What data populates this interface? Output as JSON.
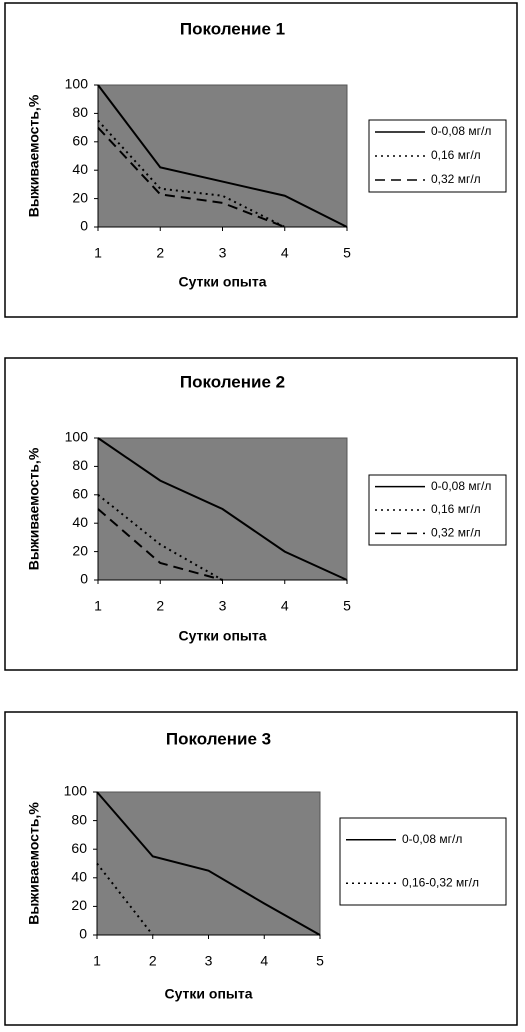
{
  "chart_data": [
    {
      "type": "line",
      "title": "Поколение 1",
      "x_label": "Сутки опыта",
      "y_label": "Выживаемость,%",
      "x": [
        1,
        2,
        3,
        4,
        5
      ],
      "xlim": [
        1,
        5
      ],
      "xticks": [
        1,
        2,
        3,
        4,
        5
      ],
      "ylim": [
        0,
        100
      ],
      "yticks": [
        0,
        20,
        40,
        60,
        80,
        100
      ],
      "legend": "right",
      "background": "#808080",
      "series": [
        {
          "name": "0-0,08 мг/л",
          "color": "#000000",
          "dash": "solid",
          "values": [
            100,
            42,
            32,
            22,
            0
          ]
        },
        {
          "name": "0,16 мг/л",
          "color": "#000000",
          "dash": "dotted",
          "values": [
            75,
            27,
            22,
            0,
            null
          ]
        },
        {
          "name": "0,32 мг/л",
          "color": "#000000",
          "dash": "dashed",
          "values": [
            70,
            23,
            17,
            0,
            null
          ]
        }
      ]
    },
    {
      "type": "line",
      "title": "Поколение 2",
      "x_label": "Сутки опыта",
      "y_label": "Выживаемость,%",
      "x": [
        1,
        2,
        3,
        4,
        5
      ],
      "xlim": [
        1,
        5
      ],
      "xticks": [
        1,
        2,
        3,
        4,
        5
      ],
      "ylim": [
        0,
        100
      ],
      "yticks": [
        0,
        20,
        40,
        60,
        80,
        100
      ],
      "legend": "right",
      "background": "#808080",
      "series": [
        {
          "name": "0-0,08 мг/л",
          "color": "#000000",
          "dash": "solid",
          "values": [
            100,
            70,
            50,
            20,
            0
          ]
        },
        {
          "name": "0,16 мг/л",
          "color": "#000000",
          "dash": "dotted",
          "values": [
            60,
            25,
            0,
            null,
            null
          ]
        },
        {
          "name": "0,32 мг/л",
          "color": "#000000",
          "dash": "dashed",
          "values": [
            50,
            12,
            0,
            null,
            null
          ]
        }
      ]
    },
    {
      "type": "line",
      "title": "Поколение 3",
      "x_label": "Сутки опыта",
      "y_label": "Выживаемость,%",
      "x": [
        1,
        2,
        3,
        4,
        5
      ],
      "xlim": [
        1,
        5
      ],
      "xticks": [
        1,
        2,
        3,
        4,
        5
      ],
      "ylim": [
        0,
        100
      ],
      "yticks": [
        0,
        20,
        40,
        60,
        80,
        100
      ],
      "legend": "right",
      "background": "#808080",
      "series": [
        {
          "name": "0-0,08 мг/л",
          "color": "#000000",
          "dash": "solid",
          "values": [
            100,
            55,
            45,
            22,
            0
          ]
        },
        {
          "name": "0,16-0,32 мг/л",
          "color": "#000000",
          "dash": "dotted",
          "values": [
            50,
            0,
            null,
            null,
            null
          ]
        }
      ]
    }
  ]
}
